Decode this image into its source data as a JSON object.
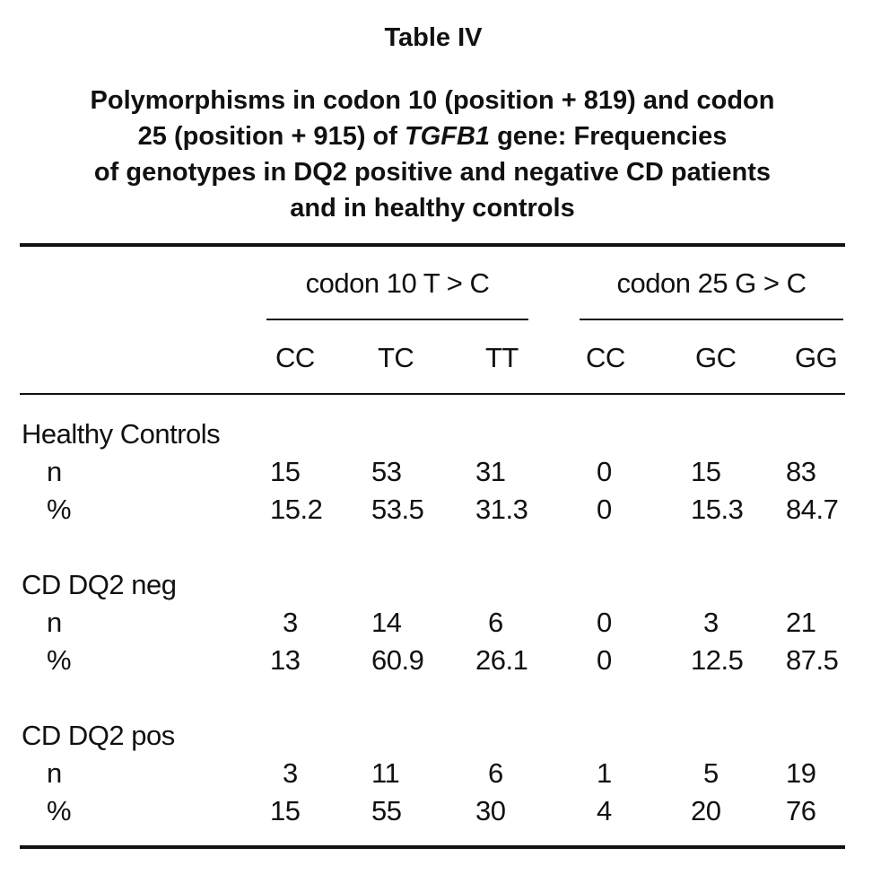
{
  "table": {
    "label": "Table IV",
    "title_lines": [
      "Polymorphisms in codon 10 (position + 819) and codon",
      "of genotypes in DQ2 positive and negative CD patients",
      "and in healthy controls"
    ],
    "title_line2_prefix": "25 (position + 915) of ",
    "title_line2_gene": "TGFB1",
    "title_line2_suffix": " gene: Frequencies",
    "spanning_headers": [
      "codon 10 T > C",
      "codon 25 G > C"
    ],
    "column_headers": [
      "CC",
      "TC",
      "TT",
      "CC",
      "GC",
      "GG"
    ],
    "groups": [
      {
        "name": "Healthy Controls",
        "rows": [
          {
            "label": "n",
            "values": [
              "15",
              "53",
              "31",
              "0",
              "15",
              "83"
            ]
          },
          {
            "label": "%",
            "values": [
              "15.2",
              "53.5",
              "31.3",
              "0",
              "15.3",
              "84.7"
            ]
          }
        ]
      },
      {
        "name": "CD DQ2 neg",
        "rows": [
          {
            "label": "n",
            "values": [
              "3",
              "14",
              "6",
              "0",
              "3",
              "21"
            ]
          },
          {
            "label": "%",
            "values": [
              "13",
              "60.9",
              "26.1",
              "0",
              "12.5",
              "87.5"
            ]
          }
        ]
      },
      {
        "name": "CD DQ2 pos",
        "rows": [
          {
            "label": "n",
            "values": [
              "3",
              "11",
              "6",
              "1",
              "5",
              "19"
            ]
          },
          {
            "label": "%",
            "values": [
              "15",
              "55",
              "30",
              "4",
              "20",
              "76"
            ]
          }
        ]
      }
    ]
  }
}
